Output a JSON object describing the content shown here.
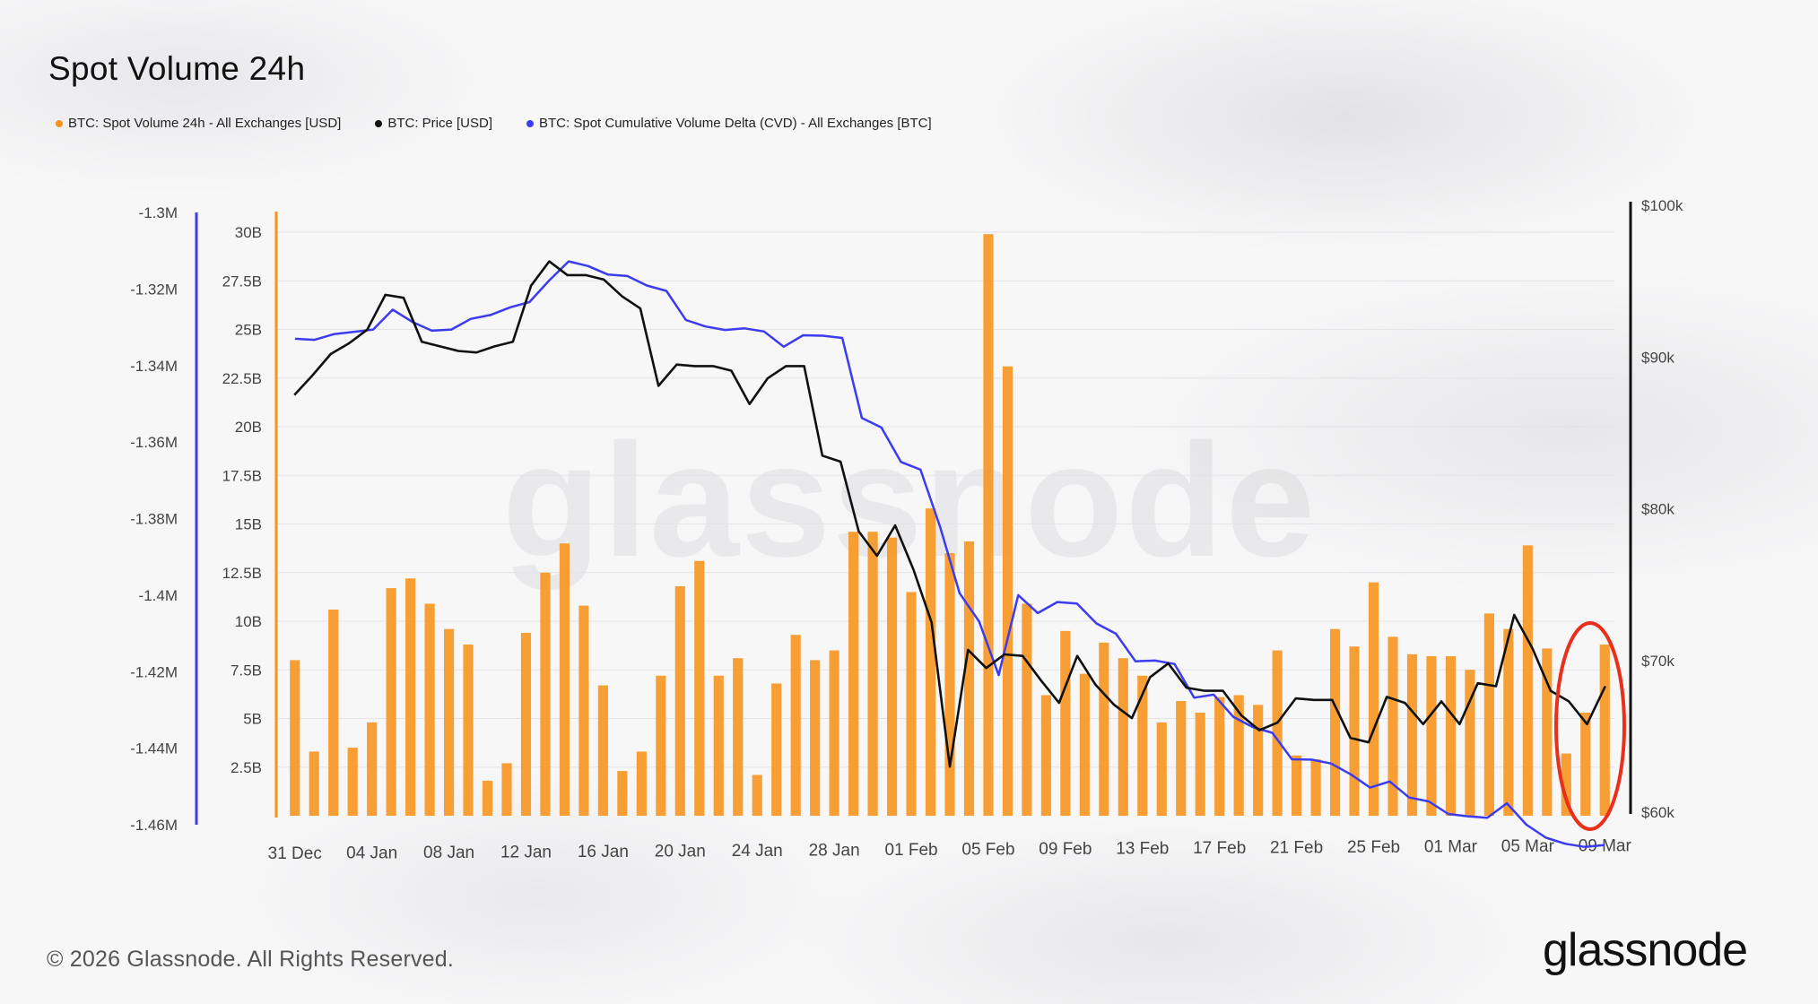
{
  "header": {
    "title": "Spot Volume 24h"
  },
  "legend": {
    "items": [
      {
        "label": "BTC: Spot Volume 24h - All Exchanges [USD]",
        "color": "#f7931a"
      },
      {
        "label": "BTC: Price [USD]",
        "color": "#111111"
      },
      {
        "label": "BTC: Spot Cumulative Volume Delta (CVD) - All Exchanges [BTC]",
        "color": "#3b3bf0"
      }
    ]
  },
  "footer": {
    "copyright": "© 2026 Glassnode. All Rights Reserved.",
    "brand": "glassnode"
  },
  "watermark": "glassnode",
  "chart_data": {
    "type": "bar",
    "title": "Spot Volume 24h",
    "xlabel": "",
    "x_tick_labels": [
      "31 Dec",
      "04 Jan",
      "08 Jan",
      "12 Jan",
      "16 Jan",
      "20 Jan",
      "24 Jan",
      "28 Jan",
      "01 Feb",
      "05 Feb",
      "09 Feb",
      "13 Feb",
      "17 Feb",
      "21 Feb",
      "25 Feb",
      "01 Mar",
      "05 Mar",
      "09 Mar"
    ],
    "volume_axis": {
      "ticks": [
        "2.5B",
        "5B",
        "7.5B",
        "10B",
        "12.5B",
        "15B",
        "17.5B",
        "20B",
        "22.5B",
        "25B",
        "27.5B",
        "30B"
      ],
      "ylim": [
        0,
        30
      ]
    },
    "cvd_axis": {
      "ticks": [
        "-1.3M",
        "-1.32M",
        "-1.34M",
        "-1.36M",
        "-1.38M",
        "-1.4M",
        "-1.42M",
        "-1.44M",
        "-1.46M"
      ],
      "ylim": [
        -1.46,
        -1.3
      ]
    },
    "price_axis": {
      "ticks": [
        "$100k",
        "$90k",
        "$80k",
        "$70k",
        "$60k"
      ],
      "ylim": [
        60,
        100
      ]
    },
    "series": [
      {
        "name": "BTC: Spot Volume 24h - All Exchanges [USD]",
        "unit": "B",
        "values": [
          8.0,
          3.3,
          10.6,
          3.5,
          4.8,
          11.7,
          12.2,
          10.9,
          9.6,
          8.8,
          1.8,
          2.7,
          9.4,
          12.5,
          14.0,
          10.8,
          6.7,
          2.3,
          3.3,
          7.2,
          11.8,
          13.1,
          7.2,
          8.1,
          2.1,
          6.8,
          9.3,
          8.0,
          8.5,
          14.6,
          14.6,
          14.3,
          11.5,
          15.8,
          13.5,
          14.1,
          29.9,
          23.1,
          10.9,
          6.2,
          9.5,
          7.3,
          8.9,
          8.1,
          7.2,
          4.8,
          5.9,
          5.3,
          6.1,
          6.2,
          5.7,
          8.5,
          3.1,
          2.9,
          9.6,
          8.7,
          12.0,
          9.2,
          8.3,
          8.2,
          8.2,
          7.5,
          10.4,
          9.6,
          13.9,
          8.6,
          3.2,
          5.3,
          8.8
        ],
        "x_step_days": 1,
        "start_date": "31 Dec"
      },
      {
        "name": "BTC: Price [USD]",
        "unit": "k",
        "values": [
          87.5,
          88.8,
          90.2,
          90.9,
          91.8,
          94.1,
          93.9,
          91.0,
          90.7,
          90.4,
          90.3,
          90.7,
          91.0,
          94.7,
          96.3,
          95.4,
          95.4,
          95.1,
          94.0,
          93.2,
          88.1,
          89.5,
          89.4,
          89.4,
          89.1,
          86.9,
          88.6,
          89.4,
          89.4,
          83.5,
          83.1,
          78.5,
          76.9,
          78.9,
          76.0,
          72.5,
          63.0,
          70.7,
          69.5,
          70.4,
          70.3,
          68.7,
          67.2,
          70.3,
          68.4,
          67.1,
          66.2,
          68.9,
          69.8,
          68.2,
          68.0,
          68.0,
          66.4,
          65.4,
          65.9,
          67.5,
          67.4,
          67.4,
          64.9,
          64.6,
          67.6,
          67.2,
          65.8,
          67.3,
          65.8,
          68.5,
          68.3,
          73.0,
          70.8,
          68.0,
          67.3,
          65.8,
          68.3
        ],
        "x_step_days": 1,
        "start_date": "31 Dec"
      },
      {
        "name": "BTC: Spot Cumulative Volume Delta (CVD) - All Exchanges [BTC]",
        "unit": "M",
        "values": [
          -1.333,
          -1.3333,
          -1.3318,
          -1.3312,
          -1.3306,
          -1.3254,
          -1.3286,
          -1.3309,
          -1.3306,
          -1.3278,
          -1.3268,
          -1.3248,
          -1.3234,
          -1.3178,
          -1.3128,
          -1.314,
          -1.3162,
          -1.3166,
          -1.3191,
          -1.3205,
          -1.3281,
          -1.3298,
          -1.3307,
          -1.3303,
          -1.3311,
          -1.3351,
          -1.3321,
          -1.3322,
          -1.3328,
          -1.3537,
          -1.3562,
          -1.3652,
          -1.3672,
          -1.3821,
          -1.3995,
          -1.4069,
          -1.4209,
          -1.4,
          -1.4047,
          -1.4018,
          -1.4022,
          -1.4074,
          -1.4101,
          -1.4173,
          -1.4171,
          -1.418,
          -1.4268,
          -1.426,
          -1.4318,
          -1.4345,
          -1.436,
          -1.4429,
          -1.443,
          -1.444,
          -1.4468,
          -1.4503,
          -1.4487,
          -1.4529,
          -1.4539,
          -1.4572,
          -1.4578,
          -1.4582,
          -1.4544,
          -1.46,
          -1.4634,
          -1.465,
          -1.4658,
          -1.4653
        ],
        "x_step_days": 1,
        "start_date": "31 Dec"
      }
    ],
    "annotation": "red ellipse highlighting latest days near 09 Mar",
    "grid": true,
    "legend_position": "top-left"
  }
}
